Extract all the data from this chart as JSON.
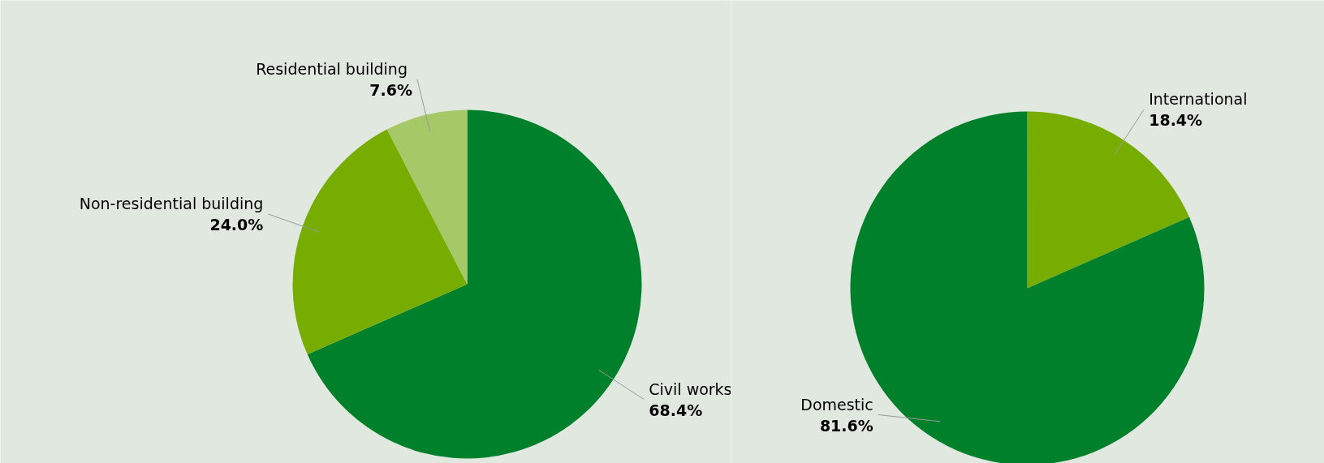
{
  "chart_data": [
    {
      "type": "pie",
      "categories": [
        "Civil works",
        "Non-residential building",
        "Residential  building"
      ],
      "values": [
        68.4,
        24.0,
        7.6
      ],
      "colors": [
        "#00802b",
        "#76ad00",
        "#a7c866"
      ],
      "value_labels": [
        "68.4%",
        "24.0%",
        "7.6%"
      ]
    },
    {
      "type": "pie",
      "categories": [
        "International",
        "Domestic"
      ],
      "values": [
        18.4,
        81.6
      ],
      "colors": [
        "#76ad00",
        "#00802b"
      ],
      "value_labels": [
        "18.4%",
        "81.6%"
      ]
    }
  ]
}
